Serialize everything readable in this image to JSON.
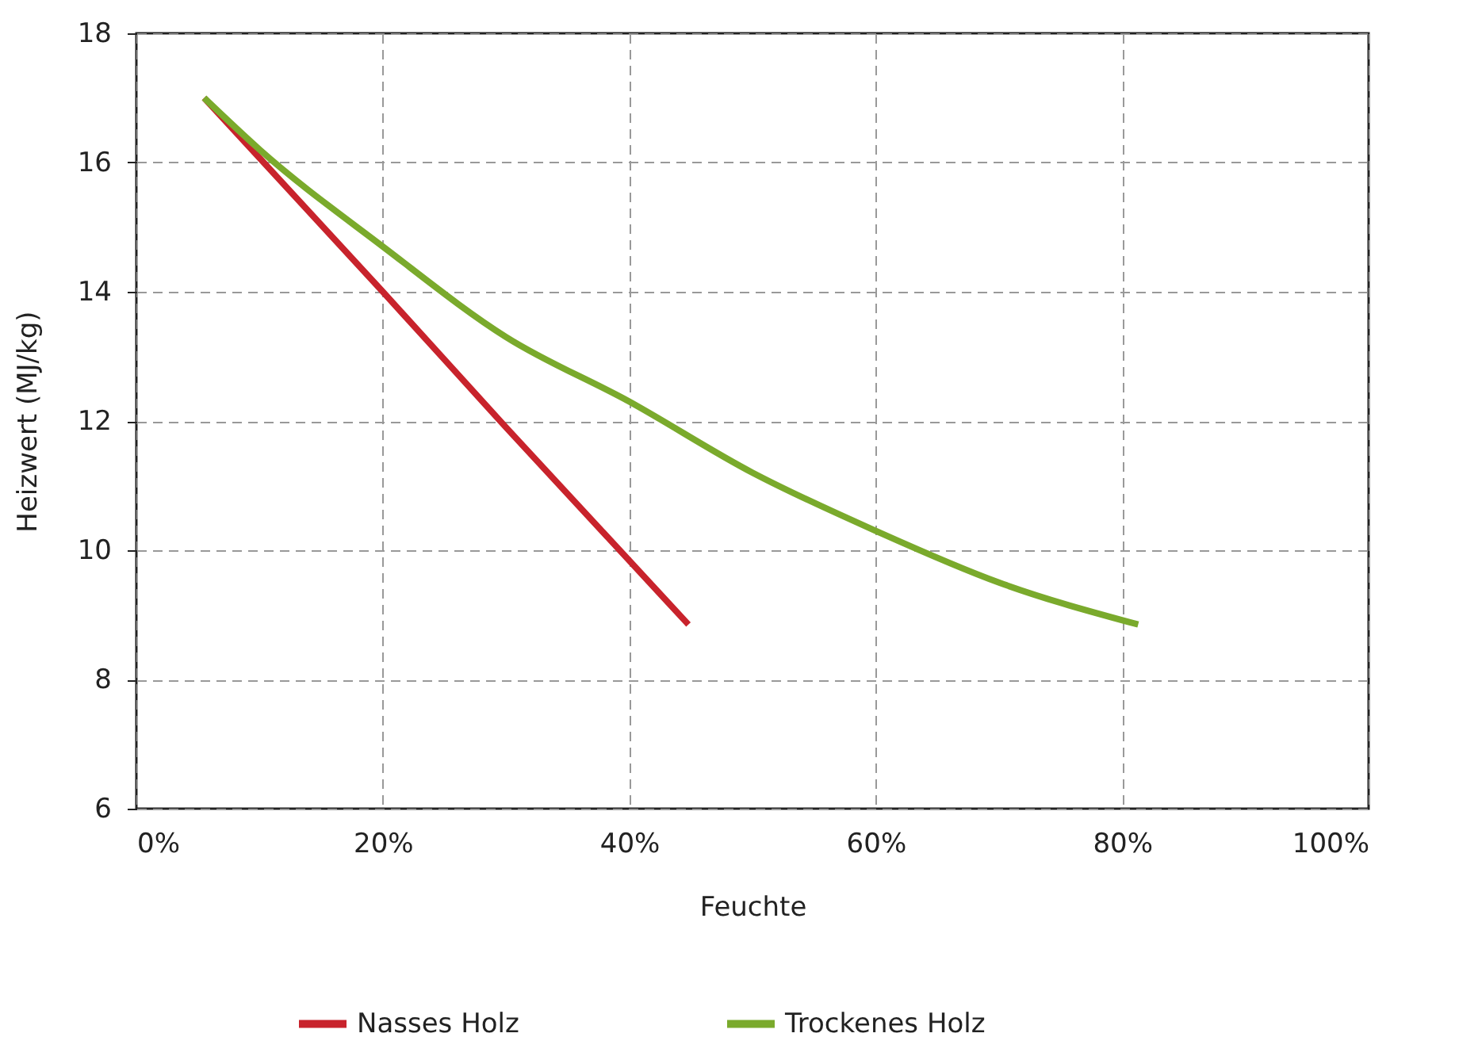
{
  "chart_data": {
    "type": "line",
    "xlabel": "Feuchte",
    "ylabel": "Heizwert (MJ/kg)",
    "xlim": [
      0,
      100
    ],
    "xticks": [
      {
        "value": 0,
        "label": "0%"
      },
      {
        "value": 20,
        "label": "20%"
      },
      {
        "value": 40,
        "label": "40%"
      },
      {
        "value": 60,
        "label": "60%"
      },
      {
        "value": 80,
        "label": "80%"
      },
      {
        "value": 100,
        "label": "100%"
      }
    ],
    "ylim": [
      6,
      18
    ],
    "yticks": [
      6,
      8,
      10,
      12,
      14,
      16,
      18
    ],
    "grid": true,
    "legend": "bottom",
    "marker": "none",
    "line_style": "solid",
    "series": [
      {
        "name": "Nasses Holz",
        "color": "#c8232c",
        "x": [
          5.5,
          20,
          30,
          44.8
        ],
        "values": [
          17,
          14,
          11.9,
          8.85
        ]
      },
      {
        "name": "Trockenes Holz",
        "color": "#7aaa2c",
        "x": [
          5.5,
          10,
          20,
          30,
          40,
          50,
          60,
          70,
          81.3
        ],
        "values": [
          17,
          16.2,
          14.7,
          13.3,
          12.3,
          11.2,
          10.3,
          9.5,
          8.85
        ]
      }
    ]
  }
}
